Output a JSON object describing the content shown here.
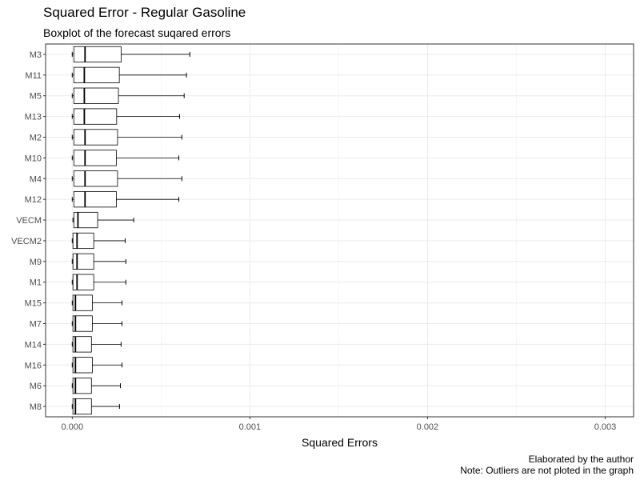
{
  "chart_data": {
    "type": "boxplot",
    "title": "Squared Error - Regular Gasoline",
    "subtitle": "Boxplot of the forecast suqared errors",
    "xlabel": "Squared Errors",
    "ylabel": "",
    "xlim": [
      -0.00015,
      0.00316
    ],
    "x_ticks": [
      0.0,
      0.001,
      0.002,
      0.003
    ],
    "x_tick_labels": [
      "0.000",
      "0.001",
      "0.002",
      "0.003"
    ],
    "grid": true,
    "categories": [
      "M3",
      "M11",
      "M5",
      "M13",
      "M2",
      "M10",
      "M4",
      "M12",
      "VECM",
      "VECM2",
      "M9",
      "M1",
      "M15",
      "M7",
      "M14",
      "M16",
      "M6",
      "M8"
    ],
    "boxes": [
      {
        "name": "M3",
        "min": 0.0,
        "q1": 9e-06,
        "median": 7.2e-05,
        "q3": 0.000275,
        "max": 0.000662
      },
      {
        "name": "M11",
        "min": 0.0,
        "q1": 9e-06,
        "median": 6.8e-05,
        "q3": 0.000265,
        "max": 0.000643
      },
      {
        "name": "M5",
        "min": 0.0,
        "q1": 9e-06,
        "median": 6.8e-05,
        "q3": 0.00026,
        "max": 0.00063
      },
      {
        "name": "M13",
        "min": 0.0,
        "q1": 9e-06,
        "median": 6.8e-05,
        "q3": 0.00025,
        "max": 0.000604
      },
      {
        "name": "M2",
        "min": 0.0,
        "q1": 9e-06,
        "median": 7.2e-05,
        "q3": 0.000255,
        "max": 0.000617
      },
      {
        "name": "M10",
        "min": 0.0,
        "q1": 9e-06,
        "median": 7.2e-05,
        "q3": 0.000248,
        "max": 0.0006
      },
      {
        "name": "M4",
        "min": 0.0,
        "q1": 9e-06,
        "median": 7.2e-05,
        "q3": 0.000255,
        "max": 0.000617
      },
      {
        "name": "M12",
        "min": 0.0,
        "q1": 9e-06,
        "median": 7.2e-05,
        "q3": 0.000248,
        "max": 0.0006
      },
      {
        "name": "VECM",
        "min": 4e-06,
        "q1": 9e-06,
        "median": 3.2e-05,
        "q3": 0.000143,
        "max": 0.000346
      },
      {
        "name": "VECM2",
        "min": 0.0,
        "q1": 4e-06,
        "median": 2.7e-05,
        "q3": 0.000121,
        "max": 0.000298
      },
      {
        "name": "M9",
        "min": 0.0,
        "q1": 4e-06,
        "median": 2.7e-05,
        "q3": 0.000121,
        "max": 0.000302
      },
      {
        "name": "M1",
        "min": 0.0,
        "q1": 4e-06,
        "median": 2.7e-05,
        "q3": 0.000121,
        "max": 0.000302
      },
      {
        "name": "M15",
        "min": 0.0,
        "q1": 4e-06,
        "median": 1.8e-05,
        "q3": 0.000113,
        "max": 0.00028
      },
      {
        "name": "M7",
        "min": 0.0,
        "q1": 4e-06,
        "median": 1.8e-05,
        "q3": 0.000113,
        "max": 0.00028
      },
      {
        "name": "M14",
        "min": 0.0,
        "q1": 4e-06,
        "median": 1.8e-05,
        "q3": 0.000108,
        "max": 0.000275
      },
      {
        "name": "M16",
        "min": 0.0,
        "q1": 4e-06,
        "median": 1.8e-05,
        "q3": 0.000113,
        "max": 0.00028
      },
      {
        "name": "M6",
        "min": 0.0,
        "q1": 4e-06,
        "median": 1.8e-05,
        "q3": 0.000108,
        "max": 0.000271
      },
      {
        "name": "M8",
        "min": 0.0,
        "q1": 4e-06,
        "median": 1.8e-05,
        "q3": 0.000108,
        "max": 0.000266
      }
    ]
  },
  "caption": {
    "line1": "Elaborated by the author",
    "line2": "Note: Outliers are not ploted in the graph"
  }
}
